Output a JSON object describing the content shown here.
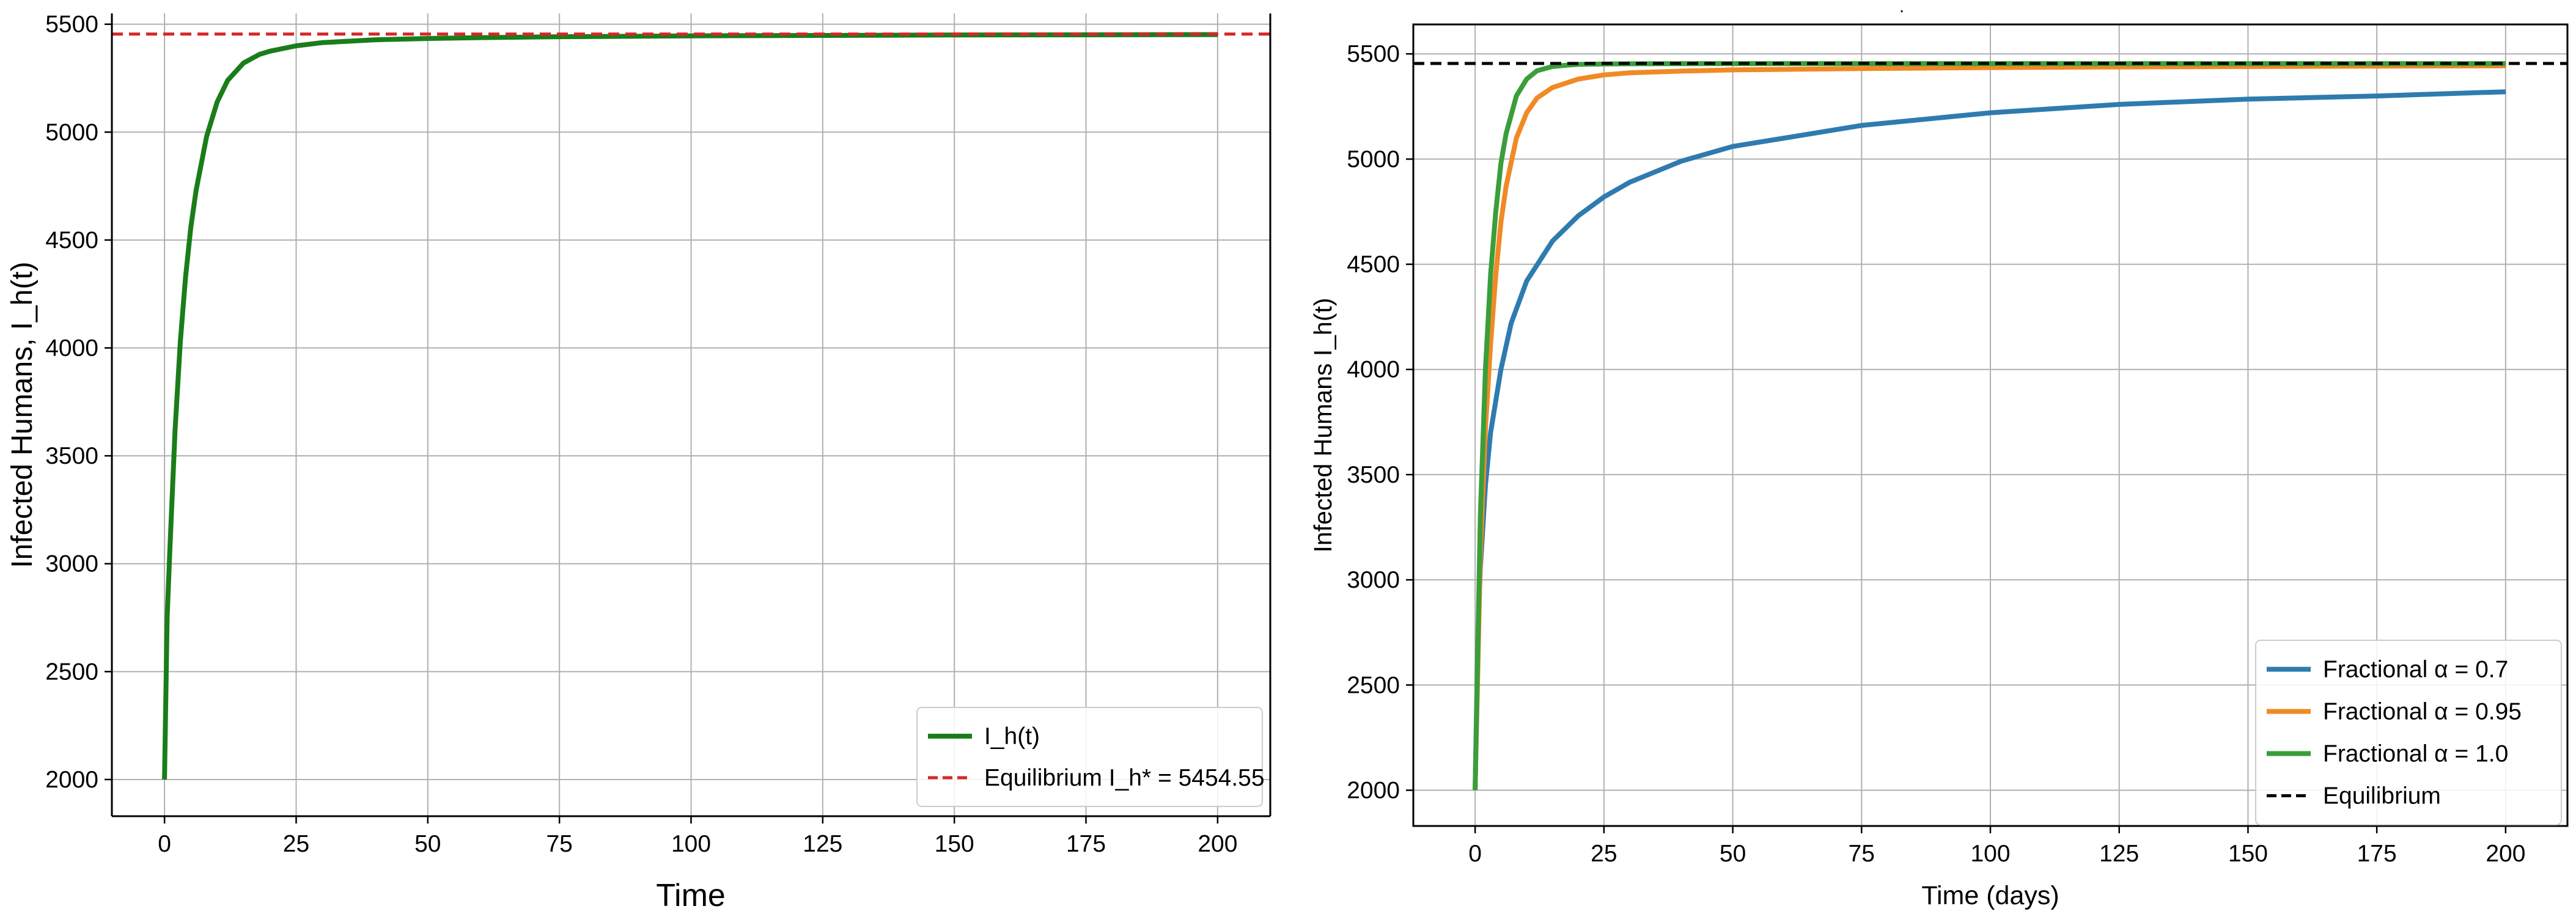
{
  "chart_data": [
    {
      "type": "line",
      "title": "",
      "xlabel": "Time",
      "ylabel": "Infected Humans, I_h(t)",
      "xlim": [
        -10,
        210
      ],
      "ylim": [
        1830,
        5550
      ],
      "xticks": [
        0,
        25,
        50,
        75,
        100,
        125,
        150,
        175,
        200
      ],
      "yticks": [
        2000,
        2500,
        3000,
        3500,
        4000,
        4500,
        5000,
        5500
      ],
      "grid": true,
      "legend_position": "lower right",
      "series": [
        {
          "name": "I_h(t)",
          "color": "#1a7d1a",
          "style": "solid",
          "x": [
            0,
            0.5,
            1,
            2,
            3,
            4,
            5,
            6,
            8,
            10,
            12,
            15,
            18,
            20,
            25,
            30,
            40,
            50,
            60,
            75,
            100,
            125,
            150,
            175,
            200
          ],
          "y": [
            2000,
            2750,
            3060,
            3620,
            4030,
            4330,
            4560,
            4730,
            4980,
            5140,
            5240,
            5320,
            5360,
            5375,
            5400,
            5415,
            5428,
            5434,
            5438,
            5442,
            5446,
            5448,
            5450,
            5451,
            5452
          ]
        },
        {
          "name": "Equilibrium I_h* = 5454.55",
          "color": "#d62728",
          "style": "dashed",
          "x": [
            -10,
            210
          ],
          "y": [
            5454.55,
            5454.55
          ]
        }
      ]
    },
    {
      "type": "line",
      "title": ".",
      "xlabel": "Time (days)",
      "ylabel": "Infected Humans I_h(t)",
      "xlim": [
        -12,
        212
      ],
      "ylim": [
        1830,
        5640
      ],
      "xticks": [
        0,
        25,
        50,
        75,
        100,
        125,
        150,
        175,
        200
      ],
      "yticks": [
        2000,
        2500,
        3000,
        3500,
        4000,
        4500,
        5000,
        5500
      ],
      "grid": true,
      "legend_position": "lower right",
      "series": [
        {
          "name": "Fractional α = 0.7",
          "color": "#2e7bb0",
          "style": "solid",
          "x": [
            0,
            0.5,
            1,
            2,
            3,
            5,
            7,
            10,
            15,
            20,
            25,
            30,
            40,
            50,
            60,
            75,
            100,
            125,
            150,
            175,
            200
          ],
          "y": [
            2000,
            2700,
            3050,
            3450,
            3700,
            4000,
            4220,
            4420,
            4610,
            4730,
            4820,
            4890,
            4990,
            5060,
            5100,
            5160,
            5220,
            5260,
            5285,
            5300,
            5320
          ]
        },
        {
          "name": "Fractional α = 0.95",
          "color": "#f08a24",
          "style": "solid",
          "x": [
            0,
            1,
            2,
            3,
            4,
            5,
            6,
            8,
            10,
            12,
            15,
            20,
            25,
            30,
            40,
            50,
            75,
            100,
            125,
            150,
            175,
            200
          ],
          "y": [
            2000,
            3100,
            3720,
            4120,
            4450,
            4700,
            4870,
            5100,
            5220,
            5290,
            5340,
            5380,
            5400,
            5410,
            5418,
            5424,
            5430,
            5435,
            5438,
            5440,
            5442,
            5443
          ]
        },
        {
          "name": "Fractional α = 1.0",
          "color": "#3a9e3a",
          "style": "solid",
          "x": [
            0,
            1,
            2,
            3,
            4,
            5,
            6,
            8,
            10,
            12,
            15,
            18,
            20,
            25,
            30,
            50,
            100,
            150,
            200
          ],
          "y": [
            2000,
            3300,
            4000,
            4450,
            4750,
            4980,
            5120,
            5300,
            5380,
            5420,
            5440,
            5447,
            5450,
            5452,
            5453,
            5454,
            5454,
            5454,
            5454
          ]
        },
        {
          "name": "Equilibrium",
          "color": "#000000",
          "style": "dashed",
          "x": [
            -12,
            212
          ],
          "y": [
            5454.55,
            5454.55
          ]
        }
      ]
    }
  ]
}
